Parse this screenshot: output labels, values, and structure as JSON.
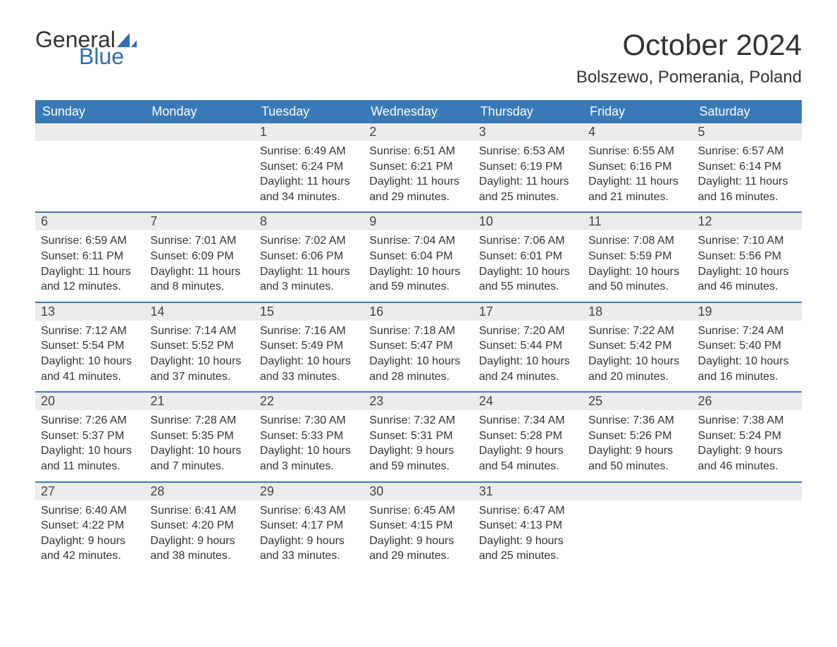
{
  "logo": {
    "text_general": "General",
    "text_blue": "Blue",
    "sail_color": "#2f6fb0"
  },
  "title": "October 2024",
  "location": "Bolszewo, Pomerania, Poland",
  "colors": {
    "header_bg": "#3a79b7",
    "header_text": "#ffffff",
    "daynum_bg": "#ececec",
    "daynum_text": "#444444",
    "body_text": "#333333",
    "week_border": "#3a79b7",
    "page_bg": "#ffffff"
  },
  "typography": {
    "title_fontsize": 42,
    "location_fontsize": 24,
    "dow_fontsize": 18,
    "daynum_fontsize": 18,
    "body_fontsize": 16,
    "logo_fontsize": 32
  },
  "days_of_week": [
    "Sunday",
    "Monday",
    "Tuesday",
    "Wednesday",
    "Thursday",
    "Friday",
    "Saturday"
  ],
  "labels": {
    "sunrise": "Sunrise:",
    "sunset": "Sunset:",
    "daylight": "Daylight:"
  },
  "weeks": [
    [
      null,
      null,
      {
        "n": "1",
        "sunrise": "6:49 AM",
        "sunset": "6:24 PM",
        "daylight_l1": "11 hours",
        "daylight_l2": "and 34 minutes."
      },
      {
        "n": "2",
        "sunrise": "6:51 AM",
        "sunset": "6:21 PM",
        "daylight_l1": "11 hours",
        "daylight_l2": "and 29 minutes."
      },
      {
        "n": "3",
        "sunrise": "6:53 AM",
        "sunset": "6:19 PM",
        "daylight_l1": "11 hours",
        "daylight_l2": "and 25 minutes."
      },
      {
        "n": "4",
        "sunrise": "6:55 AM",
        "sunset": "6:16 PM",
        "daylight_l1": "11 hours",
        "daylight_l2": "and 21 minutes."
      },
      {
        "n": "5",
        "sunrise": "6:57 AM",
        "sunset": "6:14 PM",
        "daylight_l1": "11 hours",
        "daylight_l2": "and 16 minutes."
      }
    ],
    [
      {
        "n": "6",
        "sunrise": "6:59 AM",
        "sunset": "6:11 PM",
        "daylight_l1": "11 hours",
        "daylight_l2": "and 12 minutes."
      },
      {
        "n": "7",
        "sunrise": "7:01 AM",
        "sunset": "6:09 PM",
        "daylight_l1": "11 hours",
        "daylight_l2": "and 8 minutes."
      },
      {
        "n": "8",
        "sunrise": "7:02 AM",
        "sunset": "6:06 PM",
        "daylight_l1": "11 hours",
        "daylight_l2": "and 3 minutes."
      },
      {
        "n": "9",
        "sunrise": "7:04 AM",
        "sunset": "6:04 PM",
        "daylight_l1": "10 hours",
        "daylight_l2": "and 59 minutes."
      },
      {
        "n": "10",
        "sunrise": "7:06 AM",
        "sunset": "6:01 PM",
        "daylight_l1": "10 hours",
        "daylight_l2": "and 55 minutes."
      },
      {
        "n": "11",
        "sunrise": "7:08 AM",
        "sunset": "5:59 PM",
        "daylight_l1": "10 hours",
        "daylight_l2": "and 50 minutes."
      },
      {
        "n": "12",
        "sunrise": "7:10 AM",
        "sunset": "5:56 PM",
        "daylight_l1": "10 hours",
        "daylight_l2": "and 46 minutes."
      }
    ],
    [
      {
        "n": "13",
        "sunrise": "7:12 AM",
        "sunset": "5:54 PM",
        "daylight_l1": "10 hours",
        "daylight_l2": "and 41 minutes."
      },
      {
        "n": "14",
        "sunrise": "7:14 AM",
        "sunset": "5:52 PM",
        "daylight_l1": "10 hours",
        "daylight_l2": "and 37 minutes."
      },
      {
        "n": "15",
        "sunrise": "7:16 AM",
        "sunset": "5:49 PM",
        "daylight_l1": "10 hours",
        "daylight_l2": "and 33 minutes."
      },
      {
        "n": "16",
        "sunrise": "7:18 AM",
        "sunset": "5:47 PM",
        "daylight_l1": "10 hours",
        "daylight_l2": "and 28 minutes."
      },
      {
        "n": "17",
        "sunrise": "7:20 AM",
        "sunset": "5:44 PM",
        "daylight_l1": "10 hours",
        "daylight_l2": "and 24 minutes."
      },
      {
        "n": "18",
        "sunrise": "7:22 AM",
        "sunset": "5:42 PM",
        "daylight_l1": "10 hours",
        "daylight_l2": "and 20 minutes."
      },
      {
        "n": "19",
        "sunrise": "7:24 AM",
        "sunset": "5:40 PM",
        "daylight_l1": "10 hours",
        "daylight_l2": "and 16 minutes."
      }
    ],
    [
      {
        "n": "20",
        "sunrise": "7:26 AM",
        "sunset": "5:37 PM",
        "daylight_l1": "10 hours",
        "daylight_l2": "and 11 minutes."
      },
      {
        "n": "21",
        "sunrise": "7:28 AM",
        "sunset": "5:35 PM",
        "daylight_l1": "10 hours",
        "daylight_l2": "and 7 minutes."
      },
      {
        "n": "22",
        "sunrise": "7:30 AM",
        "sunset": "5:33 PM",
        "daylight_l1": "10 hours",
        "daylight_l2": "and 3 minutes."
      },
      {
        "n": "23",
        "sunrise": "7:32 AM",
        "sunset": "5:31 PM",
        "daylight_l1": "9 hours",
        "daylight_l2": "and 59 minutes."
      },
      {
        "n": "24",
        "sunrise": "7:34 AM",
        "sunset": "5:28 PM",
        "daylight_l1": "9 hours",
        "daylight_l2": "and 54 minutes."
      },
      {
        "n": "25",
        "sunrise": "7:36 AM",
        "sunset": "5:26 PM",
        "daylight_l1": "9 hours",
        "daylight_l2": "and 50 minutes."
      },
      {
        "n": "26",
        "sunrise": "7:38 AM",
        "sunset": "5:24 PM",
        "daylight_l1": "9 hours",
        "daylight_l2": "and 46 minutes."
      }
    ],
    [
      {
        "n": "27",
        "sunrise": "6:40 AM",
        "sunset": "4:22 PM",
        "daylight_l1": "9 hours",
        "daylight_l2": "and 42 minutes."
      },
      {
        "n": "28",
        "sunrise": "6:41 AM",
        "sunset": "4:20 PM",
        "daylight_l1": "9 hours",
        "daylight_l2": "and 38 minutes."
      },
      {
        "n": "29",
        "sunrise": "6:43 AM",
        "sunset": "4:17 PM",
        "daylight_l1": "9 hours",
        "daylight_l2": "and 33 minutes."
      },
      {
        "n": "30",
        "sunrise": "6:45 AM",
        "sunset": "4:15 PM",
        "daylight_l1": "9 hours",
        "daylight_l2": "and 29 minutes."
      },
      {
        "n": "31",
        "sunrise": "6:47 AM",
        "sunset": "4:13 PM",
        "daylight_l1": "9 hours",
        "daylight_l2": "and 25 minutes."
      },
      null,
      null
    ]
  ]
}
